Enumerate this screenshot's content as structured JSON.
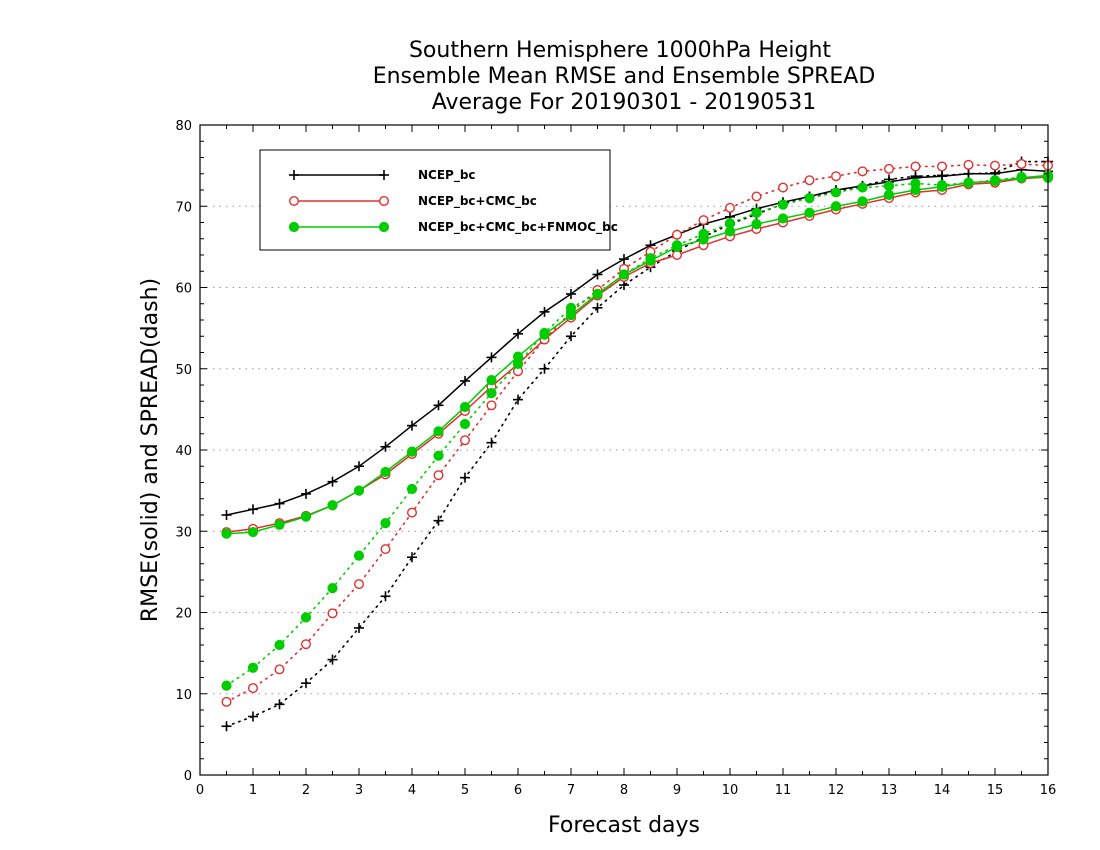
{
  "chart_data": {
    "type": "line",
    "title": [
      "Southern Hemisphere 1000hPa Height",
      "Ensemble Mean RMSE and Ensemble SPREAD",
      "Average For 20190301 - 20190531"
    ],
    "xlabel": "Forecast days",
    "ylabel": "RMSE(solid) and SPREAD(dash)",
    "xlim": [
      0,
      16
    ],
    "ylim": [
      0,
      80
    ],
    "xticks": [
      "0",
      "1",
      "2",
      "3",
      "4",
      "5",
      "6",
      "7",
      "8",
      "9",
      "10",
      "11",
      "12",
      "13",
      "14",
      "15",
      "16"
    ],
    "yticks": [
      "0",
      "10",
      "20",
      "30",
      "40",
      "50",
      "60",
      "70",
      "80"
    ],
    "grid": "horizontal dotted",
    "legend_position": "top-left",
    "x": [
      0.5,
      1,
      1.5,
      2,
      2.5,
      3,
      3.5,
      4,
      4.5,
      5,
      5.5,
      6,
      6.5,
      7,
      7.5,
      8,
      8.5,
      9,
      9.5,
      10,
      10.5,
      11,
      11.5,
      12,
      12.5,
      13,
      13.5,
      14,
      14.5,
      15,
      15.5,
      16
    ],
    "series": [
      {
        "name": "NCEP_bc",
        "color": "#000000",
        "marker": "plus",
        "rmse": [
          32.0,
          32.7,
          33.4,
          34.6,
          36.1,
          38.0,
          40.4,
          43.0,
          45.5,
          48.5,
          51.4,
          54.3,
          57.0,
          59.2,
          61.6,
          63.5,
          65.2,
          66.5,
          67.8,
          68.7,
          69.7,
          70.5,
          71.2,
          72.0,
          72.5,
          73.0,
          73.5,
          73.7,
          74.0,
          74.0,
          74.5,
          74.3
        ],
        "spread": [
          6.0,
          7.2,
          8.7,
          11.3,
          14.2,
          18.1,
          22.0,
          26.8,
          31.3,
          36.6,
          40.9,
          46.2,
          50.0,
          54.0,
          57.5,
          60.3,
          62.5,
          64.5,
          66.2,
          67.8,
          69.0,
          70.3,
          71.2,
          71.8,
          72.5,
          73.3,
          73.7,
          73.8,
          74.0,
          74.1,
          75.5,
          75.5
        ]
      },
      {
        "name": "NCEP_bc+CMC_bc",
        "color": "#e03030",
        "marker": "open-circle",
        "rmse": [
          29.9,
          30.3,
          31.0,
          31.9,
          33.2,
          35.0,
          37.0,
          39.5,
          42.0,
          44.8,
          47.8,
          50.6,
          53.6,
          56.3,
          59.0,
          61.3,
          63.0,
          64.0,
          65.2,
          66.3,
          67.2,
          68.0,
          68.8,
          69.6,
          70.3,
          71.0,
          71.7,
          72.0,
          72.7,
          72.9,
          73.4,
          73.6
        ],
        "spread": [
          9.0,
          10.7,
          13.0,
          16.1,
          19.9,
          23.5,
          27.8,
          32.3,
          36.9,
          41.2,
          45.5,
          49.7,
          53.6,
          57.0,
          59.7,
          62.3,
          64.4,
          66.5,
          68.3,
          69.8,
          71.2,
          72.3,
          73.2,
          73.7,
          74.3,
          74.6,
          74.9,
          74.9,
          75.1,
          75.0,
          75.2,
          75.0
        ]
      },
      {
        "name": "NCEP_bc+CMC_bc+FNMOC_bc",
        "color": "#00cc00",
        "marker": "filled-circle",
        "rmse": [
          29.7,
          29.9,
          30.8,
          31.8,
          33.2,
          35.0,
          37.3,
          39.8,
          42.3,
          45.3,
          48.6,
          51.5,
          54.2,
          56.6,
          59.2,
          61.6,
          63.3,
          65.0,
          65.9,
          66.9,
          67.8,
          68.5,
          69.2,
          70.0,
          70.6,
          71.4,
          72.0,
          72.4,
          72.9,
          73.1,
          73.5,
          73.8
        ],
        "spread": [
          11.0,
          13.2,
          16.0,
          19.4,
          23.0,
          27.0,
          31.0,
          35.2,
          39.3,
          43.2,
          47.0,
          50.6,
          54.4,
          57.5,
          59.2,
          61.6,
          63.6,
          65.2,
          66.6,
          67.9,
          69.2,
          70.2,
          71.0,
          71.7,
          72.3,
          72.5,
          72.8,
          72.6,
          72.9,
          73.2,
          73.6,
          73.5
        ]
      }
    ]
  }
}
